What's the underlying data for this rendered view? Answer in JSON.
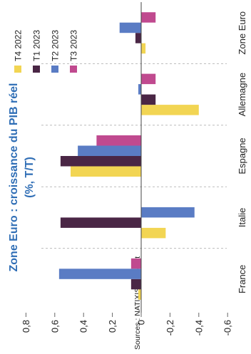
{
  "chart_data": {
    "type": "bar",
    "orientation": "vertical",
    "title": "Zone Euro : croissance du PIB réel (%, T/T)",
    "title_lines": [
      "Zone Euro : croissance du PIB réel",
      "(%, T/T)"
    ],
    "categories": [
      "France",
      "Italie",
      "Espagne",
      "Allemagne",
      "Zone Euro"
    ],
    "series": [
      {
        "name": "T4 2022",
        "color": "#f2d553",
        "values": [
          0.02,
          -0.17,
          0.49,
          -0.4,
          -0.03
        ]
      },
      {
        "name": "T1 2023",
        "color": "#4a2645",
        "values": [
          0.07,
          0.56,
          0.56,
          -0.1,
          0.04
        ]
      },
      {
        "name": "T2 2023",
        "color": "#5a7cc4",
        "values": [
          0.57,
          -0.37,
          0.44,
          0.02,
          0.15
        ]
      },
      {
        "name": "T3 2023",
        "color": "#c04a8f",
        "values": [
          0.07,
          0.0,
          0.31,
          -0.1,
          -0.1
        ]
      }
    ],
    "value_axis": {
      "ticks": [
        0.8,
        0.6,
        0.4,
        0.2,
        0,
        -0.2,
        -0.4,
        -0.6
      ],
      "tick_labels": [
        "0,8",
        "0,6",
        "0,4",
        "0,2",
        "0",
        "-0,2",
        "-0,4",
        "-0,6"
      ],
      "range": [
        -0.6,
        0.8
      ]
    },
    "legend_position": "top-right",
    "grid": false,
    "source": "Sources : NATIXIS, eurostat"
  }
}
